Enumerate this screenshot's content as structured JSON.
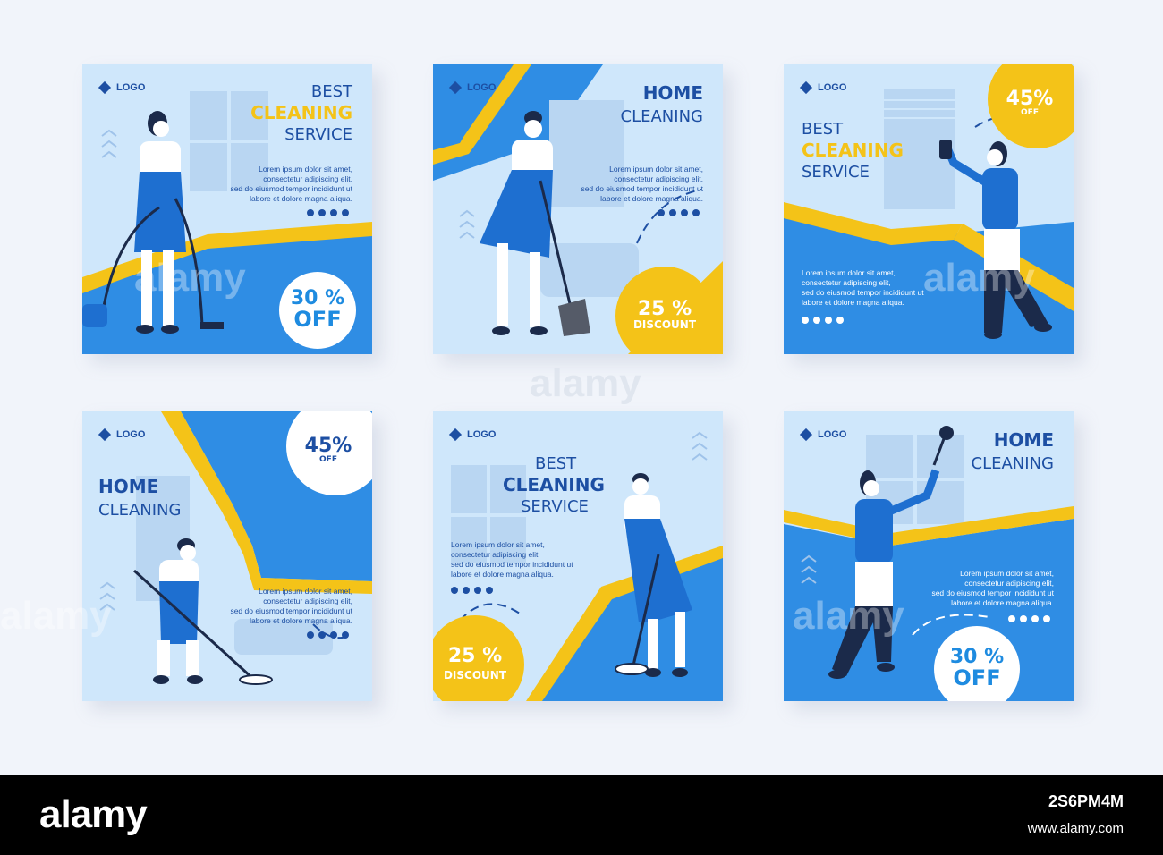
{
  "colors": {
    "blue": "#2f8de4",
    "dark_blue": "#1d4fa3",
    "yellow": "#f4c318",
    "light": "#cfe7fb",
    "stage": "#f1f4fa"
  },
  "lorem": [
    "Lorem ipsum dolor sit amet,",
    "consectetur adipiscing elit,",
    "sed do eiusmod tempor incididunt ut",
    "labore et dolore magna aliqua."
  ],
  "posts": [
    {
      "logo": "LOGO",
      "line1": "BEST",
      "line2": "CLEANING",
      "line3": "SERVICE",
      "badge_big": "30 %",
      "badge_small": "OFF"
    },
    {
      "logo": "LOGO",
      "line1": "HOME",
      "line2": "CLEANING",
      "badge_big": "25 %",
      "badge_small": "DISCOUNT"
    },
    {
      "logo": "LOGO",
      "line1": "BEST",
      "line2": "CLEANING",
      "line3": "SERVICE",
      "badge_big": "45%",
      "badge_small": "OFF"
    },
    {
      "logo": "LOGO",
      "line1": "HOME",
      "line2": "CLEANING",
      "badge_big": "45%",
      "badge_small": "OFF"
    },
    {
      "logo": "LOGO",
      "line1": "BEST",
      "line2": "CLEANING",
      "line3": "SERVICE",
      "badge_big": "25 %",
      "badge_small": "DISCOUNT"
    },
    {
      "logo": "LOGO",
      "line1": "HOME",
      "line2": "CLEANING",
      "badge_big": "30 %",
      "badge_small": "OFF"
    }
  ],
  "footer": {
    "brand": "alamy",
    "image_id": "2S6PM4M",
    "site": "www.alamy.com"
  },
  "watermark": "alamy"
}
